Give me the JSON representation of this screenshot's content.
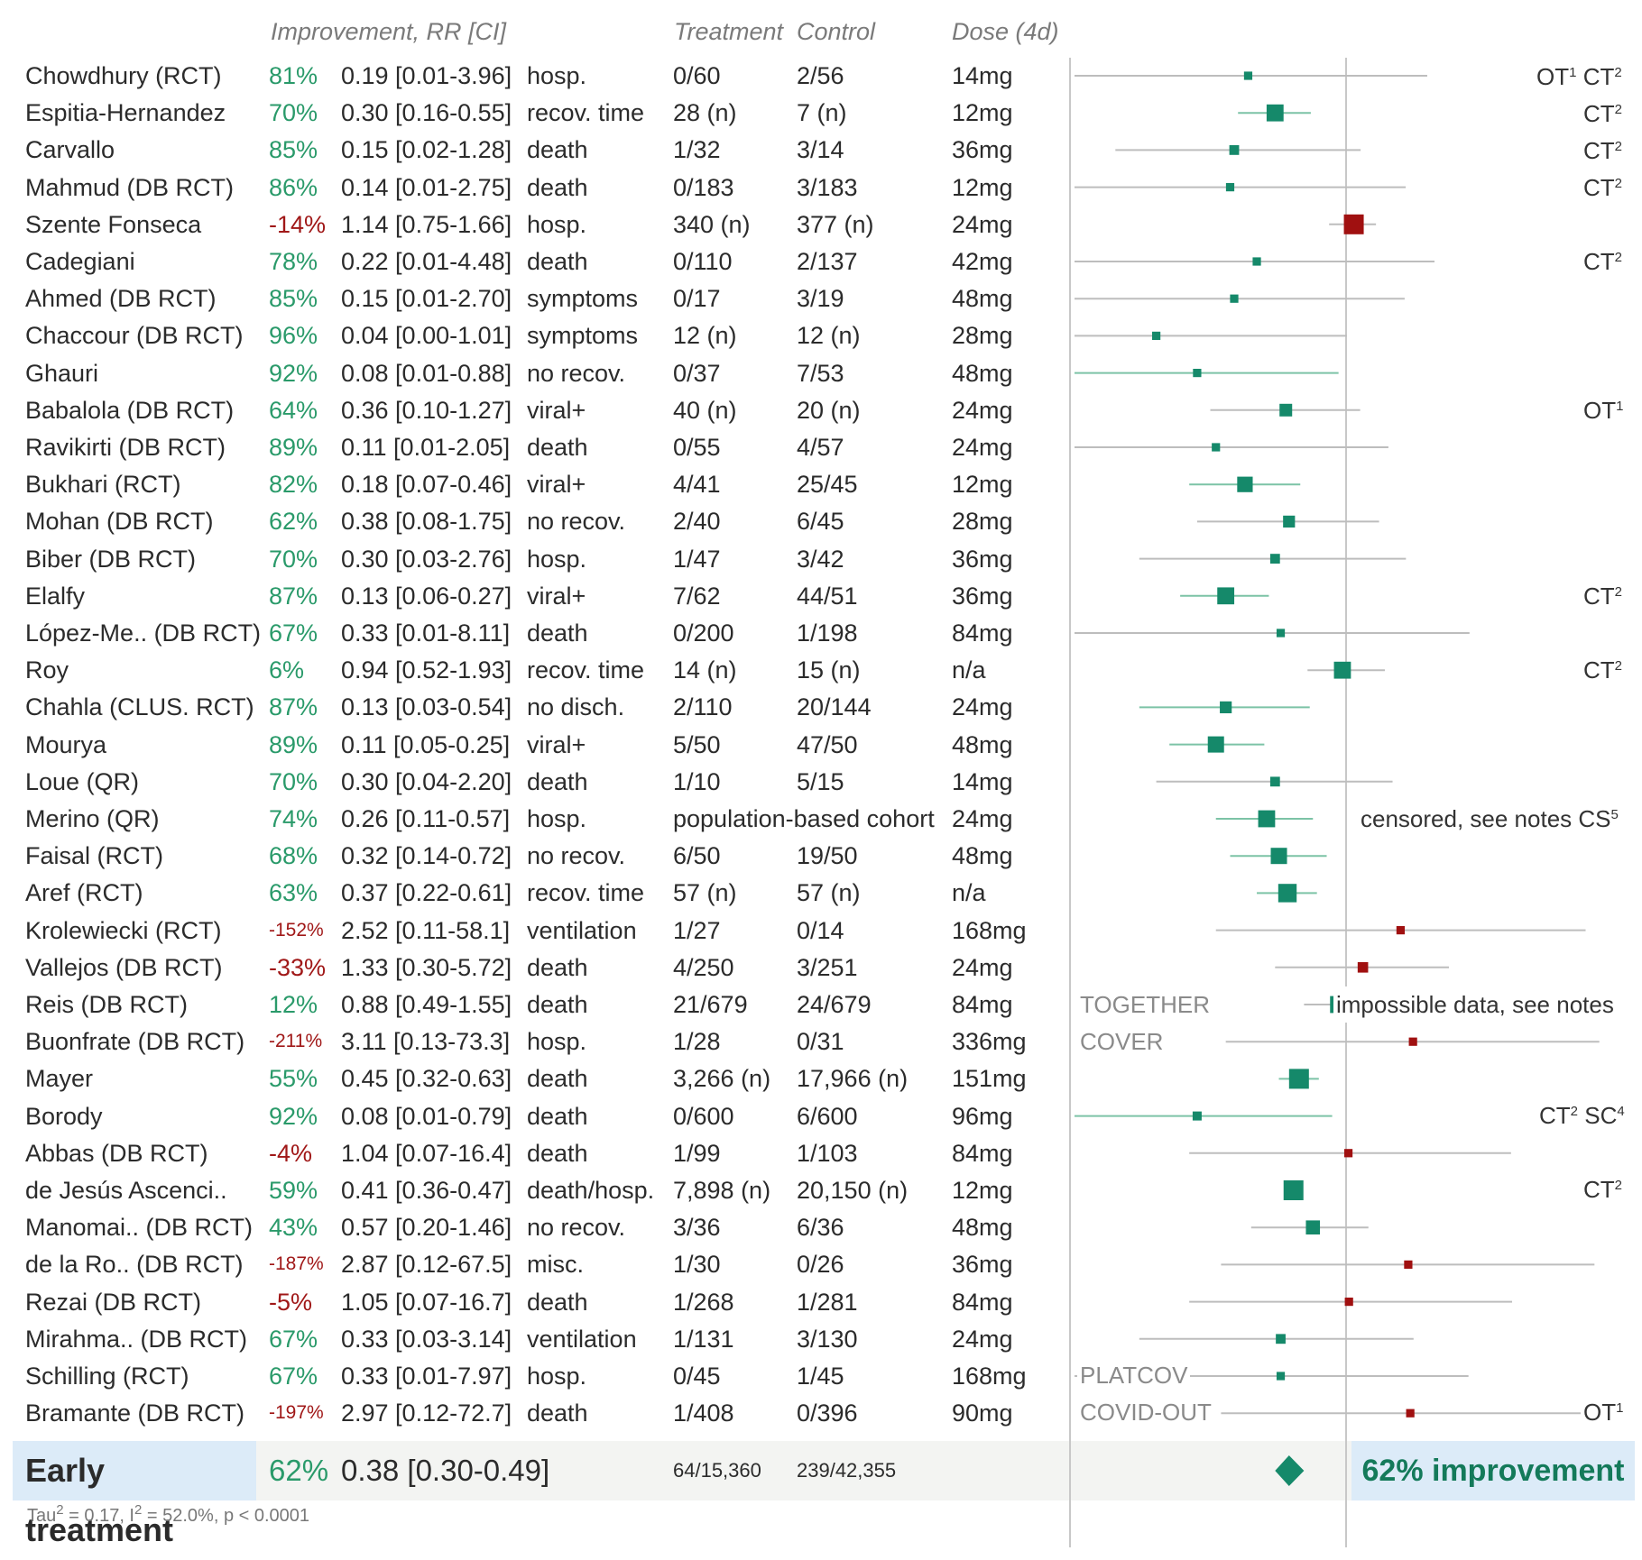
{
  "headers": {
    "improvement": "Improvement, RR [CI]",
    "treatment": "Treatment",
    "control": "Control",
    "dose": "Dose (4d)"
  },
  "studies": [
    {
      "name": "Chowdhury (RCT)",
      "imp": "81%",
      "rr": "0.19 [0.01-3.96]",
      "outcome": "hosp.",
      "treatment": "0/60",
      "control": "2/56",
      "dose": "14mg"
    },
    {
      "name": "Espitia-Hernandez",
      "imp": "70%",
      "rr": "0.30 [0.16-0.55]",
      "outcome": "recov. time",
      "treatment": "28 (n)",
      "control": "7 (n)",
      "dose": "12mg"
    },
    {
      "name": "Carvallo",
      "imp": "85%",
      "rr": "0.15 [0.02-1.28]",
      "outcome": "death",
      "treatment": "1/32",
      "control": "3/14",
      "dose": "36mg"
    },
    {
      "name": "Mahmud (DB RCT)",
      "imp": "86%",
      "rr": "0.14 [0.01-2.75]",
      "outcome": "death",
      "treatment": "0/183",
      "control": "3/183",
      "dose": "12mg"
    },
    {
      "name": "Szente Fonseca",
      "imp": "-14%",
      "rr": "1.14 [0.75-1.66]",
      "outcome": "hosp.",
      "treatment": "340 (n)",
      "control": "377 (n)",
      "dose": "24mg"
    },
    {
      "name": "Cadegiani",
      "imp": "78%",
      "rr": "0.22 [0.01-4.48]",
      "outcome": "death",
      "treatment": "0/110",
      "control": "2/137",
      "dose": "42mg"
    },
    {
      "name": "Ahmed (DB RCT)",
      "imp": "85%",
      "rr": "0.15 [0.01-2.70]",
      "outcome": "symptoms",
      "treatment": "0/17",
      "control": "3/19",
      "dose": "48mg"
    },
    {
      "name": "Chaccour (DB RCT)",
      "imp": "96%",
      "rr": "0.04 [0.00-1.01]",
      "outcome": "symptoms",
      "treatment": "12 (n)",
      "control": "12 (n)",
      "dose": "28mg"
    },
    {
      "name": "Ghauri",
      "imp": "92%",
      "rr": "0.08 [0.01-0.88]",
      "outcome": "no recov.",
      "treatment": "0/37",
      "control": "7/53",
      "dose": "48mg"
    },
    {
      "name": "Babalola (DB RCT)",
      "imp": "64%",
      "rr": "0.36 [0.10-1.27]",
      "outcome": "viral+",
      "treatment": "40 (n)",
      "control": "20 (n)",
      "dose": "24mg"
    },
    {
      "name": "Ravikirti (DB RCT)",
      "imp": "89%",
      "rr": "0.11 [0.01-2.05]",
      "outcome": "death",
      "treatment": "0/55",
      "control": "4/57",
      "dose": "24mg"
    },
    {
      "name": "Bukhari (RCT)",
      "imp": "82%",
      "rr": "0.18 [0.07-0.46]",
      "outcome": "viral+",
      "treatment": "4/41",
      "control": "25/45",
      "dose": "12mg"
    },
    {
      "name": "Mohan (DB RCT)",
      "imp": "62%",
      "rr": "0.38 [0.08-1.75]",
      "outcome": "no recov.",
      "treatment": "2/40",
      "control": "6/45",
      "dose": "28mg"
    },
    {
      "name": "Biber (DB RCT)",
      "imp": "70%",
      "rr": "0.30 [0.03-2.76]",
      "outcome": "hosp.",
      "treatment": "1/47",
      "control": "3/42",
      "dose": "36mg"
    },
    {
      "name": "Elalfy",
      "imp": "87%",
      "rr": "0.13 [0.06-0.27]",
      "outcome": "viral+",
      "treatment": "7/62",
      "control": "44/51",
      "dose": "36mg"
    },
    {
      "name": "López-Me.. (DB RCT)",
      "imp": "67%",
      "rr": "0.33 [0.01-8.11]",
      "outcome": "death",
      "treatment": "0/200",
      "control": "1/198",
      "dose": "84mg"
    },
    {
      "name": "Roy",
      "imp": "6%",
      "rr": "0.94 [0.52-1.93]",
      "outcome": "recov. time",
      "treatment": "14 (n)",
      "control": "15 (n)",
      "dose": "n/a"
    },
    {
      "name": "Chahla (CLUS. RCT)",
      "imp": "87%",
      "rr": "0.13 [0.03-0.54]",
      "outcome": "no disch.",
      "treatment": "2/110",
      "control": "20/144",
      "dose": "24mg"
    },
    {
      "name": "Mourya",
      "imp": "89%",
      "rr": "0.11 [0.05-0.25]",
      "outcome": "viral+",
      "treatment": "5/50",
      "control": "47/50",
      "dose": "48mg"
    },
    {
      "name": "Loue (QR)",
      "imp": "70%",
      "rr": "0.30 [0.04-2.20]",
      "outcome": "death",
      "treatment": "1/10",
      "control": "5/15",
      "dose": "14mg"
    },
    {
      "name": "Merino (QR)",
      "imp": "74%",
      "rr": "0.26 [0.11-0.57]",
      "outcome": "hosp.",
      "treatment": "population-based cohort",
      "control": "",
      "dose": "24mg"
    },
    {
      "name": "Faisal (RCT)",
      "imp": "68%",
      "rr": "0.32 [0.14-0.72]",
      "outcome": "no recov.",
      "treatment": "6/50",
      "control": "19/50",
      "dose": "48mg"
    },
    {
      "name": "Aref (RCT)",
      "imp": "63%",
      "rr": "0.37 [0.22-0.61]",
      "outcome": "recov. time",
      "treatment": "57 (n)",
      "control": "57 (n)",
      "dose": "n/a"
    },
    {
      "name": "Krolewiecki (RCT)",
      "imp": "-152%",
      "rr": "2.52 [0.11-58.1]",
      "outcome": "ventilation",
      "treatment": "1/27",
      "control": "0/14",
      "dose": "168mg"
    },
    {
      "name": "Vallejos (DB RCT)",
      "imp": "-33%",
      "rr": "1.33 [0.30-5.72]",
      "outcome": "death",
      "treatment": "4/250",
      "control": "3/251",
      "dose": "24mg"
    },
    {
      "name": "Reis (DB RCT)",
      "imp": "12%",
      "rr": "0.88 [0.49-1.55]",
      "outcome": "death",
      "treatment": "21/679",
      "control": "24/679",
      "dose": "84mg"
    },
    {
      "name": "Buonfrate (DB RCT)",
      "imp": "-211%",
      "rr": "3.11 [0.13-73.3]",
      "outcome": "hosp.",
      "treatment": "1/28",
      "control": "0/31",
      "dose": "336mg"
    },
    {
      "name": "Mayer",
      "imp": "55%",
      "rr": "0.45 [0.32-0.63]",
      "outcome": "death",
      "treatment": "3,266 (n)",
      "control": "17,966 (n)",
      "dose": "151mg"
    },
    {
      "name": "Borody",
      "imp": "92%",
      "rr": "0.08 [0.01-0.79]",
      "outcome": "death",
      "treatment": "0/600",
      "control": "6/600",
      "dose": "96mg"
    },
    {
      "name": "Abbas (DB RCT)",
      "imp": "-4%",
      "rr": "1.04 [0.07-16.4]",
      "outcome": "death",
      "treatment": "1/99",
      "control": "1/103",
      "dose": "84mg"
    },
    {
      "name": "de Jesús Ascenci..",
      "imp": "59%",
      "rr": "0.41 [0.36-0.47]",
      "outcome": "death/hosp.",
      "treatment": "7,898 (n)",
      "control": "20,150 (n)",
      "dose": "12mg"
    },
    {
      "name": "Manomai.. (DB RCT)",
      "imp": "43%",
      "rr": "0.57 [0.20-1.46]",
      "outcome": "no recov.",
      "treatment": "3/36",
      "control": "6/36",
      "dose": "48mg"
    },
    {
      "name": "de la Ro.. (DB RCT)",
      "imp": "-187%",
      "rr": "2.87 [0.12-67.5]",
      "outcome": "misc.",
      "treatment": "1/30",
      "control": "0/26",
      "dose": "36mg"
    },
    {
      "name": "Rezai (DB RCT)",
      "imp": "-5%",
      "rr": "1.05 [0.07-16.7]",
      "outcome": "death",
      "treatment": "1/268",
      "control": "1/281",
      "dose": "84mg"
    },
    {
      "name": "Mirahma.. (DB RCT)",
      "imp": "67%",
      "rr": "0.33 [0.03-3.14]",
      "outcome": "ventilation",
      "treatment": "1/131",
      "control": "3/130",
      "dose": "24mg"
    },
    {
      "name": "Schilling (RCT)",
      "imp": "67%",
      "rr": "0.33 [0.01-7.97]",
      "outcome": "hosp.",
      "treatment": "0/45",
      "control": "1/45",
      "dose": "168mg"
    },
    {
      "name": "Bramante (DB RCT)",
      "imp": "-197%",
      "rr": "2.97 [0.12-72.7]",
      "outcome": "death",
      "treatment": "1/408",
      "control": "0/396",
      "dose": "90mg"
    }
  ],
  "annotations": {
    "chowdhury": {
      "a": "OT",
      "a_sup": "1",
      "b": "CT",
      "b_sup": "2"
    },
    "ct2": {
      "text": "CT",
      "sup": "2"
    },
    "ot1": {
      "text": "OT",
      "sup": "1"
    },
    "merino": {
      "text": "censored, see notes CS",
      "sup": "5"
    },
    "borody": {
      "a": "CT",
      "a_sup": "2",
      "b": "SC",
      "b_sup": "4"
    },
    "reis_label": "TOGETHER",
    "reis_note": "impossible data, see notes",
    "buonfrate_label": "COVER",
    "schilling_label": "PLATCOV",
    "bramante_label": "COVID-OUT"
  },
  "summary": {
    "label": "Early treatment",
    "imp": "62%",
    "rr": "0.38 [0.30-0.49]",
    "treatment": "64/15,360",
    "control": "239/42,355",
    "improvement_text": "62% improvement",
    "tau_label": "Tau",
    "tau_sup": "2",
    "tau_value": " = 0.17, I",
    "i2_sup": "2",
    "i2_value": " = 52.0%, p < 0.0001"
  },
  "colors": {
    "positive": "#15896a",
    "negative": "#a01010",
    "ci_positive": "#7cc3a6",
    "ci_neutral": "#bdbdbd",
    "axis": "#c8c8c8"
  },
  "chart_data": {
    "type": "forest",
    "title": "Early treatment",
    "x_scale": "log",
    "xlim": [
      0.01,
      10.0
    ],
    "reference_line": 1.0,
    "series": [
      {
        "name": "Chowdhury (RCT)",
        "rr": 0.19,
        "lo": 0.01,
        "hi": 3.96,
        "weight": 0.2
      },
      {
        "name": "Espitia-Hernandez",
        "rr": 0.3,
        "lo": 0.16,
        "hi": 0.55,
        "weight": 0.8
      },
      {
        "name": "Carvallo",
        "rr": 0.15,
        "lo": 0.02,
        "hi": 1.28,
        "weight": 0.3
      },
      {
        "name": "Mahmud (DB RCT)",
        "rr": 0.14,
        "lo": 0.01,
        "hi": 2.75,
        "weight": 0.2
      },
      {
        "name": "Szente Fonseca",
        "rr": 1.14,
        "lo": 0.75,
        "hi": 1.66,
        "weight": 1.0
      },
      {
        "name": "Cadegiani",
        "rr": 0.22,
        "lo": 0.01,
        "hi": 4.48,
        "weight": 0.2
      },
      {
        "name": "Ahmed (DB RCT)",
        "rr": 0.15,
        "lo": 0.01,
        "hi": 2.7,
        "weight": 0.2
      },
      {
        "name": "Chaccour (DB RCT)",
        "rr": 0.04,
        "lo": 0.0,
        "hi": 1.01,
        "weight": 0.2
      },
      {
        "name": "Ghauri",
        "rr": 0.08,
        "lo": 0.01,
        "hi": 0.88,
        "weight": 0.2
      },
      {
        "name": "Babalola (DB RCT)",
        "rr": 0.36,
        "lo": 0.1,
        "hi": 1.27,
        "weight": 0.5
      },
      {
        "name": "Ravikirti (DB RCT)",
        "rr": 0.11,
        "lo": 0.01,
        "hi": 2.05,
        "weight": 0.2
      },
      {
        "name": "Bukhari (RCT)",
        "rr": 0.18,
        "lo": 0.07,
        "hi": 0.46,
        "weight": 0.7
      },
      {
        "name": "Mohan (DB RCT)",
        "rr": 0.38,
        "lo": 0.08,
        "hi": 1.75,
        "weight": 0.45
      },
      {
        "name": "Biber (DB RCT)",
        "rr": 0.3,
        "lo": 0.03,
        "hi": 2.76,
        "weight": 0.3
      },
      {
        "name": "Elalfy",
        "rr": 0.13,
        "lo": 0.06,
        "hi": 0.27,
        "weight": 0.8
      },
      {
        "name": "López-Me.. (DB RCT)",
        "rr": 0.33,
        "lo": 0.01,
        "hi": 8.11,
        "weight": 0.2
      },
      {
        "name": "Roy",
        "rr": 0.94,
        "lo": 0.52,
        "hi": 1.93,
        "weight": 0.8
      },
      {
        "name": "Chahla (CLUS. RCT)",
        "rr": 0.13,
        "lo": 0.03,
        "hi": 0.54,
        "weight": 0.45
      },
      {
        "name": "Mourya",
        "rr": 0.11,
        "lo": 0.05,
        "hi": 0.25,
        "weight": 0.75
      },
      {
        "name": "Loue (QR)",
        "rr": 0.3,
        "lo": 0.04,
        "hi": 2.2,
        "weight": 0.3
      },
      {
        "name": "Merino (QR)",
        "rr": 0.26,
        "lo": 0.11,
        "hi": 0.57,
        "weight": 0.8
      },
      {
        "name": "Faisal (RCT)",
        "rr": 0.32,
        "lo": 0.14,
        "hi": 0.72,
        "weight": 0.75
      },
      {
        "name": "Aref (RCT)",
        "rr": 0.37,
        "lo": 0.22,
        "hi": 0.61,
        "weight": 0.9
      },
      {
        "name": "Krolewiecki (RCT)",
        "rr": 2.52,
        "lo": 0.11,
        "hi": 58.1,
        "weight": 0.2
      },
      {
        "name": "Vallejos (DB RCT)",
        "rr": 1.33,
        "lo": 0.3,
        "hi": 5.72,
        "weight": 0.35
      },
      {
        "name": "Reis (DB RCT)",
        "rr": 0.88,
        "lo": 0.49,
        "hi": 1.55,
        "weight": 0.8
      },
      {
        "name": "Buonfrate (DB RCT)",
        "rr": 3.11,
        "lo": 0.13,
        "hi": 73.3,
        "weight": 0.2
      },
      {
        "name": "Mayer",
        "rr": 0.45,
        "lo": 0.32,
        "hi": 0.63,
        "weight": 1.0
      },
      {
        "name": "Borody",
        "rr": 0.08,
        "lo": 0.01,
        "hi": 0.79,
        "weight": 0.25
      },
      {
        "name": "Abbas (DB RCT)",
        "rr": 1.04,
        "lo": 0.07,
        "hi": 16.4,
        "weight": 0.2
      },
      {
        "name": "de Jesús Ascenci..",
        "rr": 0.41,
        "lo": 0.36,
        "hi": 0.47,
        "weight": 1.0
      },
      {
        "name": "Manomai.. (DB RCT)",
        "rr": 0.57,
        "lo": 0.2,
        "hi": 1.46,
        "weight": 0.6
      },
      {
        "name": "de la Ro.. (DB RCT)",
        "rr": 2.87,
        "lo": 0.12,
        "hi": 67.5,
        "weight": 0.2
      },
      {
        "name": "Rezai (DB RCT)",
        "rr": 1.05,
        "lo": 0.07,
        "hi": 16.7,
        "weight": 0.2
      },
      {
        "name": "Mirahma.. (DB RCT)",
        "rr": 0.33,
        "lo": 0.03,
        "hi": 3.14,
        "weight": 0.3
      },
      {
        "name": "Schilling (RCT)",
        "rr": 0.33,
        "lo": 0.01,
        "hi": 7.97,
        "weight": 0.2
      },
      {
        "name": "Bramante (DB RCT)",
        "rr": 2.97,
        "lo": 0.12,
        "hi": 72.7,
        "weight": 0.2
      }
    ],
    "summary": {
      "rr": 0.38,
      "lo": 0.3,
      "hi": 0.49
    }
  }
}
